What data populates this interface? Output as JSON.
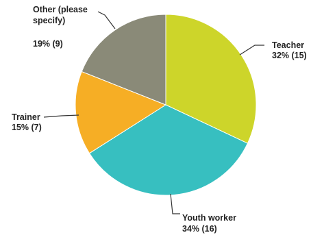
{
  "chart_data": {
    "type": "pie",
    "slices": [
      {
        "name": "Teacher",
        "percent": 32,
        "count": 15,
        "value_label": "32% (15)",
        "color": "#cdd52a"
      },
      {
        "name": "Youth worker",
        "percent": 34,
        "count": 16,
        "value_label": "34% (16)",
        "color": "#37bfc0"
      },
      {
        "name": "Trainer",
        "percent": 15,
        "count": 7,
        "value_label": "15% (7)",
        "color": "#f6ae25"
      },
      {
        "name": "Other (please specify)",
        "name_lines": [
          "Other (please",
          "specify)"
        ],
        "percent": 19,
        "count": 9,
        "value_label": "19% (9)",
        "color": "#8a8a78"
      }
    ],
    "start_angle_deg": 0,
    "direction": "clockwise"
  }
}
